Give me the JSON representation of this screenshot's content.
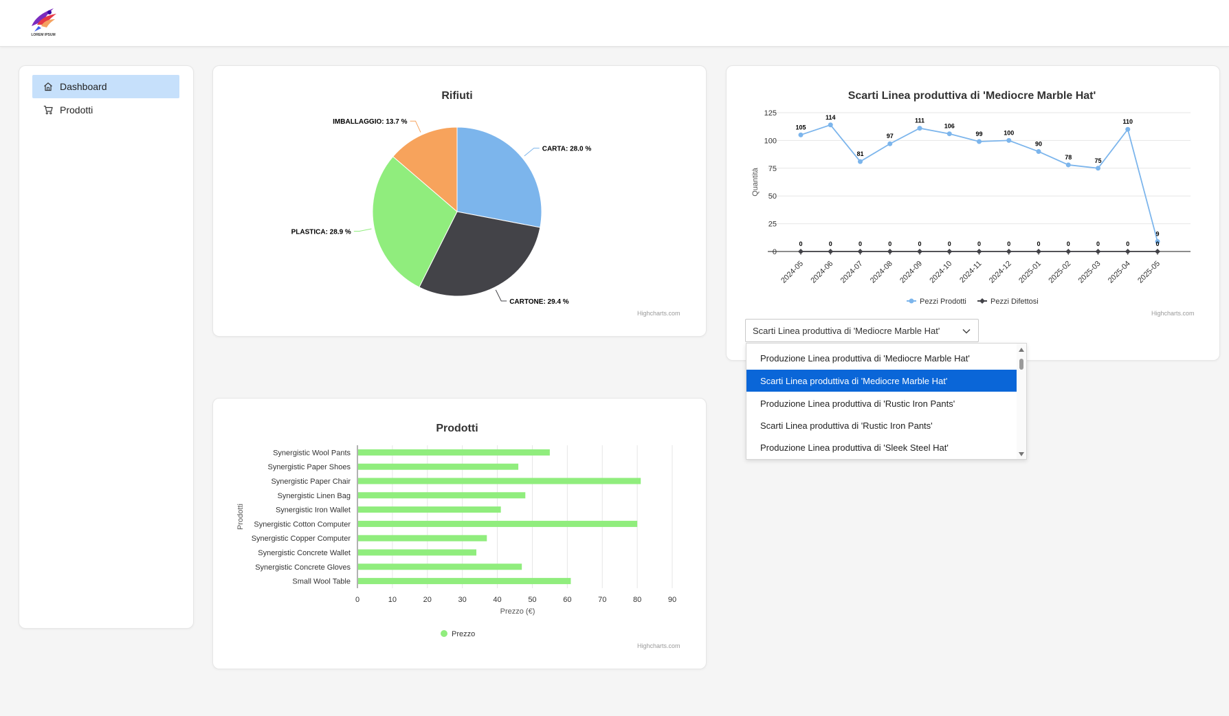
{
  "header": {
    "logo_text": "LOREM IPSUM"
  },
  "sidebar": {
    "items": [
      {
        "label": "Dashboard",
        "icon": "home-icon",
        "active": true
      },
      {
        "label": "Prodotti",
        "icon": "cart-icon",
        "active": false
      }
    ]
  },
  "credits": "Highcharts.com",
  "colors": {
    "accent": "#0a66d8",
    "nav_active": "#c6e0fb",
    "line_series": "#7cb5ec",
    "defect_series": "#434348",
    "bar": "#90ed7d"
  },
  "charts": {
    "pie": {
      "chart_data": {
        "type": "pie",
        "title": "Rifiuti",
        "slices": [
          {
            "name": "CARTA",
            "label": "CARTA: 28.0 %",
            "value": 28.0,
            "color": "#7cb5ec"
          },
          {
            "name": "CARTONE",
            "label": "CARTONE: 29.4 %",
            "value": 29.4,
            "color": "#434348"
          },
          {
            "name": "PLASTICA",
            "label": "PLASTICA: 28.9 %",
            "value": 28.9,
            "color": "#90ed7d"
          },
          {
            "name": "IMBALLAGGIO",
            "label": "IMBALLAGGIO: 13.7 %",
            "value": 13.7,
            "color": "#f7a35c"
          }
        ]
      }
    },
    "line": {
      "chart_data": {
        "type": "line",
        "title": "Scarti Linea produttiva di 'Mediocre Marble Hat'",
        "ylabel": "Quantità",
        "xlabel": "",
        "categories": [
          "2024-05",
          "2024-06",
          "2024-07",
          "2024-08",
          "2024-09",
          "2024-10",
          "2024-11",
          "2024-12",
          "2025-01",
          "2025-02",
          "2025-03",
          "2025-04",
          "2025-05"
        ],
        "ylim": [
          0,
          125
        ],
        "yticks": [
          0,
          25,
          50,
          75,
          100,
          125
        ],
        "grid": true,
        "legend": "bottom-center",
        "series": [
          {
            "name": "Pezzi Prodotti",
            "color": "#7cb5ec",
            "values": [
              105,
              114,
              81,
              97,
              111,
              106,
              99,
              100,
              90,
              78,
              75,
              110,
              9
            ]
          },
          {
            "name": "Pezzi Difettosi",
            "color": "#434348",
            "values": [
              0,
              0,
              0,
              0,
              0,
              0,
              0,
              0,
              0,
              0,
              0,
              0,
              0
            ]
          }
        ]
      }
    },
    "bar": {
      "chart_data": {
        "type": "bar",
        "title": "Prodotti",
        "xlabel": "Prezzo (€)",
        "ylabel": "Prodotti",
        "categories": [
          "Synergistic Wool Pants",
          "Synergistic Paper Shoes",
          "Synergistic Paper Chair",
          "Synergistic Linen Bag",
          "Synergistic Iron Wallet",
          "Synergistic Cotton Computer",
          "Synergistic Copper Computer",
          "Synergistic Concrete Wallet",
          "Synergistic Concrete Gloves",
          "Small Wool Table"
        ],
        "xlim": [
          0,
          90
        ],
        "xticks": [
          0,
          10,
          20,
          30,
          40,
          50,
          60,
          70,
          80,
          90
        ],
        "grid": true,
        "legend": "bottom-center",
        "series": [
          {
            "name": "Prezzo",
            "color": "#90ed7d",
            "values": [
              55,
              46,
              81,
              48,
              41,
              80,
              37,
              34,
              47,
              61
            ]
          }
        ]
      }
    }
  },
  "select": {
    "value": "Scarti Linea produttiva di 'Mediocre Marble Hat'",
    "options": [
      "Produzione Linea produttiva di 'Mediocre Marble Hat'",
      "Scarti Linea produttiva di 'Mediocre Marble Hat'",
      "Produzione Linea produttiva di 'Rustic Iron Pants'",
      "Scarti Linea produttiva di 'Rustic Iron Pants'",
      "Produzione Linea produttiva di 'Sleek Steel Hat'"
    ],
    "selected_index": 1
  }
}
